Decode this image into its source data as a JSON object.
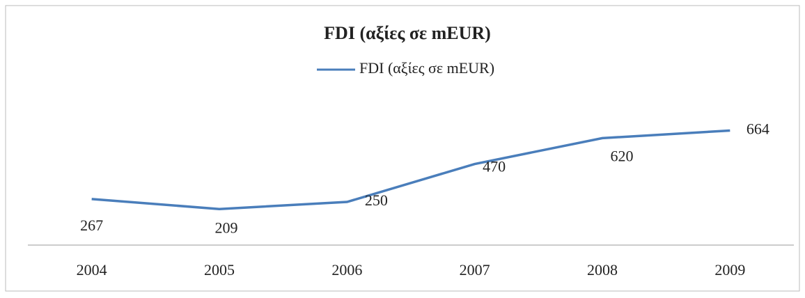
{
  "chart_data": {
    "type": "line",
    "title": "FDI (αξίες σε mEUR)",
    "categories": [
      "2004",
      "2005",
      "2006",
      "2007",
      "2008",
      "2009"
    ],
    "series": [
      {
        "name": "FDI (αξίες σε mEUR)",
        "color": "#4a7ebb",
        "values": [
          267,
          209,
          250,
          470,
          620,
          664
        ]
      }
    ],
    "ylim": [
      0,
      900
    ],
    "legend": "top"
  }
}
